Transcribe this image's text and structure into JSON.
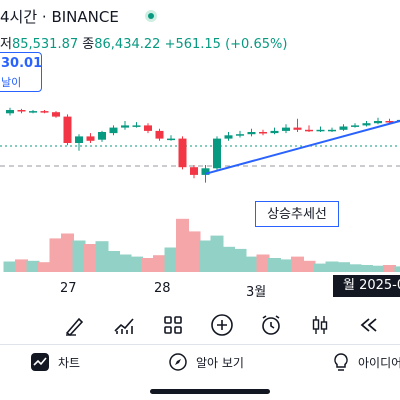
{
  "header": {
    "title": "4시간 · BINANCE",
    "ohlc": {
      "low_label": "저",
      "low_value": "85,531.87",
      "close_label": "종",
      "close_value": "86,434.22",
      "change": "+561.15 (+0.65%)"
    }
  },
  "price_tag": {
    "price": "30.01",
    "label": "날이"
  },
  "annotation": {
    "trend_label": "상승추세선"
  },
  "x_axis": {
    "labels": [
      "27",
      "28",
      "3월"
    ],
    "time_badge": "월 2025-0"
  },
  "toolbar": {
    "tools": [
      "draw-pen-icon",
      "indicators-icon",
      "layouts-icon",
      "add-icon",
      "alarm-icon",
      "candle-type-icon",
      "replay-icon"
    ]
  },
  "nav": {
    "chart_label": "차트",
    "explore_label": "알아 보기",
    "ideas_label": "아이디어"
  },
  "colors": {
    "up": "#089981",
    "down": "#f23645",
    "trendline": "#2962ff",
    "volume_up": "#92d1c6",
    "volume_down": "#f5a6a8"
  },
  "chart_data": {
    "type": "candlestick",
    "candles": [
      {
        "o": 0.97,
        "c": 1.0,
        "h": 1.02,
        "l": 0.95
      },
      {
        "o": 1.0,
        "c": 0.99,
        "h": 1.01,
        "l": 0.97
      },
      {
        "o": 0.99,
        "c": 0.99,
        "h": 1.0,
        "l": 0.97
      },
      {
        "o": 0.99,
        "c": 0.98,
        "h": 1.0,
        "l": 0.97
      },
      {
        "o": 0.98,
        "c": 0.94,
        "h": 0.99,
        "l": 0.93
      },
      {
        "o": 0.94,
        "c": 0.7,
        "h": 0.96,
        "l": 0.68
      },
      {
        "o": 0.7,
        "c": 0.76,
        "h": 0.78,
        "l": 0.63
      },
      {
        "o": 0.76,
        "c": 0.72,
        "h": 0.79,
        "l": 0.7
      },
      {
        "o": 0.73,
        "c": 0.8,
        "h": 0.81,
        "l": 0.71
      },
      {
        "o": 0.79,
        "c": 0.84,
        "h": 0.86,
        "l": 0.77
      },
      {
        "o": 0.84,
        "c": 0.86,
        "h": 0.9,
        "l": 0.82
      },
      {
        "o": 0.86,
        "c": 0.86,
        "h": 0.89,
        "l": 0.84
      },
      {
        "o": 0.86,
        "c": 0.81,
        "h": 0.88,
        "l": 0.79
      },
      {
        "o": 0.81,
        "c": 0.74,
        "h": 0.83,
        "l": 0.72
      },
      {
        "o": 0.74,
        "c": 0.74,
        "h": 0.77,
        "l": 0.72
      },
      {
        "o": 0.74,
        "c": 0.48,
        "h": 0.76,
        "l": 0.46
      },
      {
        "o": 0.48,
        "c": 0.41,
        "h": 0.5,
        "l": 0.38
      },
      {
        "o": 0.41,
        "c": 0.47,
        "h": 0.5,
        "l": 0.34
      },
      {
        "o": 0.47,
        "c": 0.74,
        "h": 0.76,
        "l": 0.45
      },
      {
        "o": 0.74,
        "c": 0.77,
        "h": 0.8,
        "l": 0.72
      },
      {
        "o": 0.77,
        "c": 0.78,
        "h": 0.81,
        "l": 0.75
      },
      {
        "o": 0.78,
        "c": 0.8,
        "h": 0.83,
        "l": 0.76
      },
      {
        "o": 0.8,
        "c": 0.79,
        "h": 0.82,
        "l": 0.77
      },
      {
        "o": 0.79,
        "c": 0.81,
        "h": 0.84,
        "l": 0.78
      },
      {
        "o": 0.81,
        "c": 0.84,
        "h": 0.87,
        "l": 0.79
      },
      {
        "o": 0.84,
        "c": 0.82,
        "h": 0.92,
        "l": 0.8
      },
      {
        "o": 0.82,
        "c": 0.81,
        "h": 0.86,
        "l": 0.8
      },
      {
        "o": 0.81,
        "c": 0.82,
        "h": 0.85,
        "l": 0.8
      },
      {
        "o": 0.82,
        "c": 0.82,
        "h": 0.84,
        "l": 0.8
      },
      {
        "o": 0.82,
        "c": 0.85,
        "h": 0.87,
        "l": 0.81
      },
      {
        "o": 0.85,
        "c": 0.86,
        "h": 0.88,
        "l": 0.84
      },
      {
        "o": 0.86,
        "c": 0.88,
        "h": 0.9,
        "l": 0.85
      },
      {
        "o": 0.88,
        "c": 0.9,
        "h": 0.93,
        "l": 0.87
      },
      {
        "o": 0.9,
        "c": 0.89,
        "h": 0.92,
        "l": 0.87
      },
      {
        "o": 0.89,
        "c": 0.91,
        "h": 0.93,
        "l": 0.88
      }
    ],
    "volumes": [
      0.15,
      0.18,
      0.16,
      0.14,
      0.48,
      0.55,
      0.45,
      0.4,
      0.44,
      0.3,
      0.25,
      0.22,
      0.2,
      0.24,
      0.35,
      0.76,
      0.58,
      0.45,
      0.52,
      0.36,
      0.33,
      0.22,
      0.25,
      0.2,
      0.18,
      0.22,
      0.16,
      0.12,
      0.15,
      0.14,
      0.11,
      0.1,
      0.09,
      0.1,
      0.08
    ],
    "trendline": {
      "from": 17,
      "to": 34,
      "from_level": 0.42,
      "to_level": 0.88
    }
  }
}
